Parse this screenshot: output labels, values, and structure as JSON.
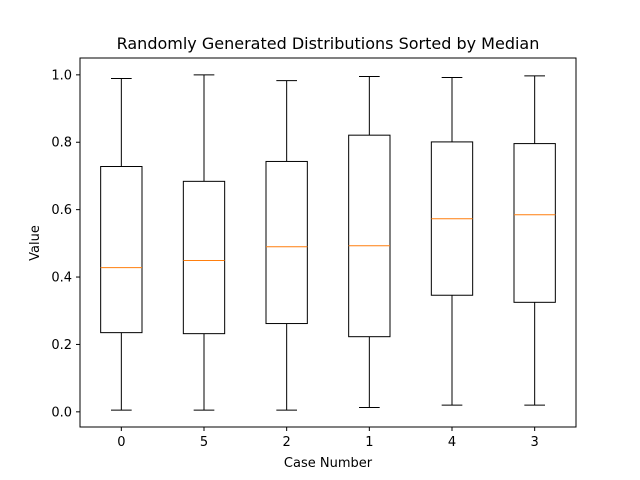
{
  "chart_data": {
    "type": "boxplot",
    "title": "Randomly Generated Distributions Sorted by Median",
    "xlabel": "Case Number",
    "ylabel": "Value",
    "categories": [
      "0",
      "5",
      "2",
      "1",
      "4",
      "3"
    ],
    "boxes": [
      {
        "label": "0",
        "min": 0.005,
        "q1": 0.235,
        "median": 0.428,
        "q3": 0.728,
        "max": 0.989
      },
      {
        "label": "5",
        "min": 0.005,
        "q1": 0.232,
        "median": 0.449,
        "q3": 0.684,
        "max": 1.0
      },
      {
        "label": "2",
        "min": 0.005,
        "q1": 0.262,
        "median": 0.49,
        "q3": 0.743,
        "max": 0.983
      },
      {
        "label": "1",
        "min": 0.013,
        "q1": 0.223,
        "median": 0.493,
        "q3": 0.821,
        "max": 0.995
      },
      {
        "label": "4",
        "min": 0.02,
        "q1": 0.346,
        "median": 0.573,
        "q3": 0.801,
        "max": 0.992
      },
      {
        "label": "3",
        "min": 0.02,
        "q1": 0.325,
        "median": 0.585,
        "q3": 0.796,
        "max": 0.997
      }
    ],
    "ylim": [
      -0.045,
      1.05
    ],
    "yticks": [
      0.0,
      0.2,
      0.4,
      0.6,
      0.8,
      1.0
    ],
    "ytick_labels": [
      "0.0",
      "0.2",
      "0.4",
      "0.6",
      "0.8",
      "1.0"
    ],
    "grid": false,
    "colors": {
      "box": "#000000",
      "median": "#ff7f0e",
      "whisker": "#000000",
      "axes": "#000000",
      "background": "#ffffff"
    }
  }
}
